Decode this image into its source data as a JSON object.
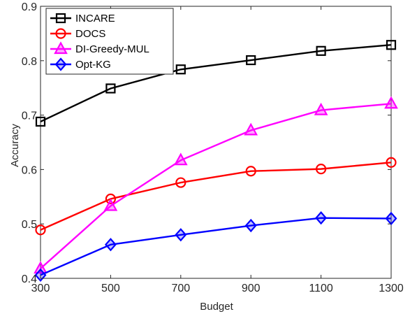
{
  "chart_data": {
    "type": "line",
    "title": "",
    "xlabel": "Budget",
    "ylabel": "Accuracy",
    "x": [
      300,
      500,
      700,
      900,
      1100,
      1300
    ],
    "x_ticks": [
      "300",
      "500",
      "700",
      "900",
      "1100",
      "1300"
    ],
    "y_ticks": [
      "0.4",
      "0.5",
      "0.6",
      "0.7",
      "0.8",
      "0.9"
    ],
    "xlim": [
      300,
      1300
    ],
    "ylim": [
      0.4,
      0.9
    ],
    "grid": false,
    "legend_position": "top-left",
    "series": [
      {
        "name": "INCARE",
        "color": "#000000",
        "marker": "square",
        "values": [
          0.688,
          0.749,
          0.784,
          0.801,
          0.818,
          0.829
        ]
      },
      {
        "name": "DOCS",
        "color": "#ff0000",
        "marker": "circle",
        "values": [
          0.489,
          0.546,
          0.576,
          0.597,
          0.601,
          0.613
        ]
      },
      {
        "name": "DI-Greedy-MUL",
        "color": "#ff00ff",
        "marker": "triangle",
        "values": [
          0.418,
          0.533,
          0.617,
          0.672,
          0.709,
          0.721
        ]
      },
      {
        "name": "Opt-KG",
        "color": "#0000ff",
        "marker": "diamond",
        "values": [
          0.406,
          0.462,
          0.48,
          0.497,
          0.511,
          0.51
        ]
      }
    ]
  }
}
